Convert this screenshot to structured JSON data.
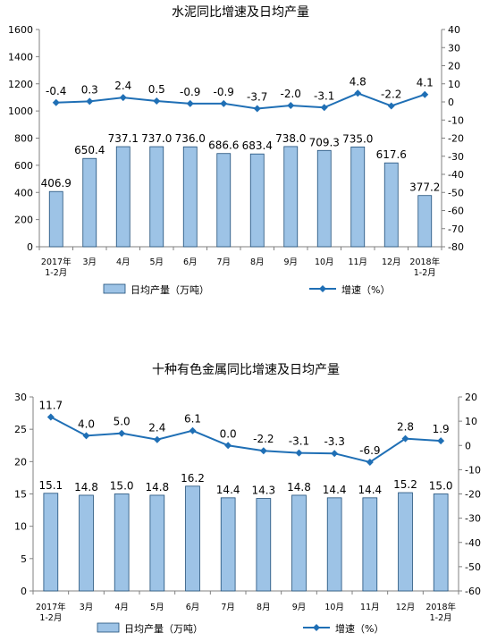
{
  "colors": {
    "bar_fill": "#9dc3e6",
    "bar_stroke": "#1f4e79",
    "line": "#1f6fb5",
    "axis": "#808080",
    "text": "#000000"
  },
  "chart_data": [
    {
      "type": "bar",
      "title": "水泥同比增速及日均产量",
      "categories": [
        "2017年\n1-2月",
        "3月",
        "4月",
        "5月",
        "6月",
        "7月",
        "8月",
        "9月",
        "10月",
        "11月",
        "12月",
        "2018年\n1-2月"
      ],
      "series": [
        {
          "name": "日均产量（万吨）",
          "type": "bar",
          "axis": "left",
          "values": [
            406.9,
            650.4,
            737.1,
            737.0,
            736.0,
            686.6,
            683.4,
            738.0,
            709.3,
            735.0,
            617.6,
            377.2
          ]
        },
        {
          "name": "增速（%）",
          "type": "line",
          "axis": "right",
          "values": [
            -0.4,
            0.3,
            2.4,
            0.5,
            -0.9,
            -0.9,
            -3.7,
            -2.0,
            -3.1,
            4.8,
            -2.2,
            4.1
          ]
        }
      ],
      "left_axis": {
        "min": 0,
        "max": 1600,
        "step": 200,
        "decimals": 0
      },
      "right_axis": {
        "min": -80,
        "max": 40,
        "step": 10
      },
      "bar_label_decimals": 1,
      "line_label_decimals": 1,
      "legend_position": "bottom"
    },
    {
      "type": "bar",
      "title": "十种有色金属同比增速及日均产量",
      "categories": [
        "2017年\n1-2月",
        "3月",
        "4月",
        "5月",
        "6月",
        "7月",
        "8月",
        "9月",
        "10月",
        "11月",
        "12月",
        "2018年\n1-2月"
      ],
      "series": [
        {
          "name": "日均产量（万吨）",
          "type": "bar",
          "axis": "left",
          "values": [
            15.1,
            14.8,
            15.0,
            14.8,
            16.2,
            14.4,
            14.3,
            14.8,
            14.4,
            14.4,
            15.2,
            15.0
          ]
        },
        {
          "name": "增速（%）",
          "type": "line",
          "axis": "right",
          "values": [
            11.7,
            4.0,
            5.0,
            2.4,
            6.1,
            0.0,
            -2.2,
            -3.1,
            -3.3,
            -6.9,
            2.8,
            1.9
          ]
        }
      ],
      "left_axis": {
        "min": 0,
        "max": 30,
        "step": 5
      },
      "right_axis": {
        "min": -60,
        "max": 20,
        "step": 10
      },
      "bar_label_decimals": 1,
      "line_label_decimals": 1,
      "legend_position": "bottom"
    }
  ]
}
